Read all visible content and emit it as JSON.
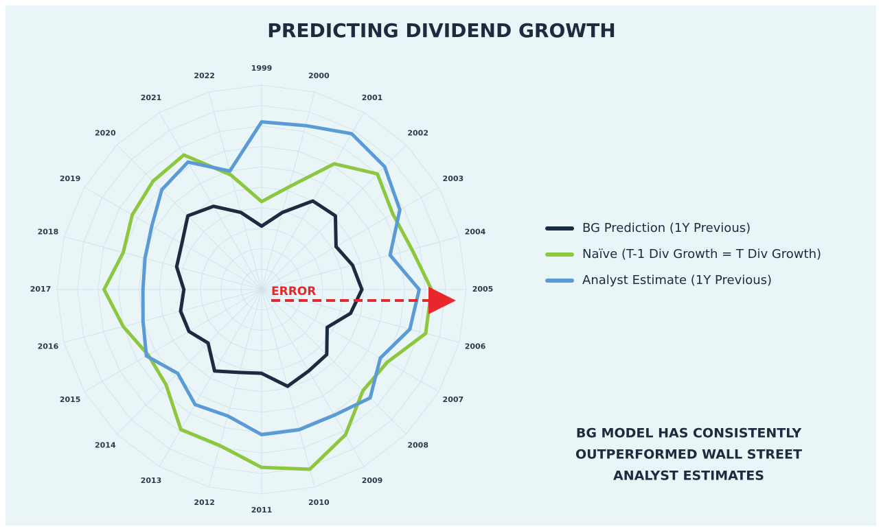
{
  "chart_data": {
    "type": "radar",
    "title": "PREDICTING DIVIDEND GROWTH",
    "categories": [
      "1999",
      "2000",
      "2001",
      "2002",
      "2003",
      "2004",
      "2005",
      "2006",
      "2007",
      "2008",
      "2009",
      "2010",
      "2011",
      "2012",
      "2013",
      "2014",
      "2015",
      "2016",
      "2017",
      "2018",
      "2019",
      "2020",
      "2021",
      "2022"
    ],
    "series": [
      {
        "name": "BG Prediction (1Y Previous)",
        "color": "#1c2b3f",
        "values": [
          3.1,
          3.9,
          5.0,
          5.1,
          4.2,
          4.6,
          4.9,
          4.5,
          3.7,
          4.5,
          4.6,
          4.9,
          4.1,
          4.2,
          4.6,
          3.7,
          4.1,
          4.1,
          3.8,
          4.3,
          4.5,
          5.1,
          4.7,
          3.9
        ]
      },
      {
        "name": "Naïve (T-1 Div Growth = T Div Growth)",
        "color": "#8dc63f",
        "values": [
          4.3,
          5.2,
          7.1,
          8.0,
          7.4,
          7.6,
          8.3,
          8.3,
          7.1,
          7.0,
          8.2,
          9.1,
          8.7,
          7.9,
          7.9,
          6.6,
          6.4,
          7.0,
          7.7,
          7.0,
          7.3,
          7.5,
          7.6,
          5.8
        ]
      },
      {
        "name": "Analyst Estimate (1Y Previous)",
        "color": "#5b9bd5",
        "values": [
          8.2,
          8.3,
          8.8,
          8.5,
          7.8,
          6.5,
          7.7,
          7.5,
          6.7,
          7.5,
          7.1,
          7.1,
          7.1,
          6.4,
          6.5,
          5.8,
          6.5,
          6.0,
          5.8,
          5.9,
          6.2,
          6.9,
          7.2,
          6.0
        ]
      }
    ],
    "ylim": [
      0,
      10
    ],
    "yticks": [
      1,
      2,
      3,
      4,
      5,
      6,
      7,
      8,
      9,
      10
    ],
    "grid": true,
    "legend": "right",
    "annotation": "ERROR",
    "note": [
      "BG MODEL HAS CONSISTENTLY",
      "OUTPERFORMED WALL STREET",
      "ANALYST ESTIMATES"
    ]
  }
}
